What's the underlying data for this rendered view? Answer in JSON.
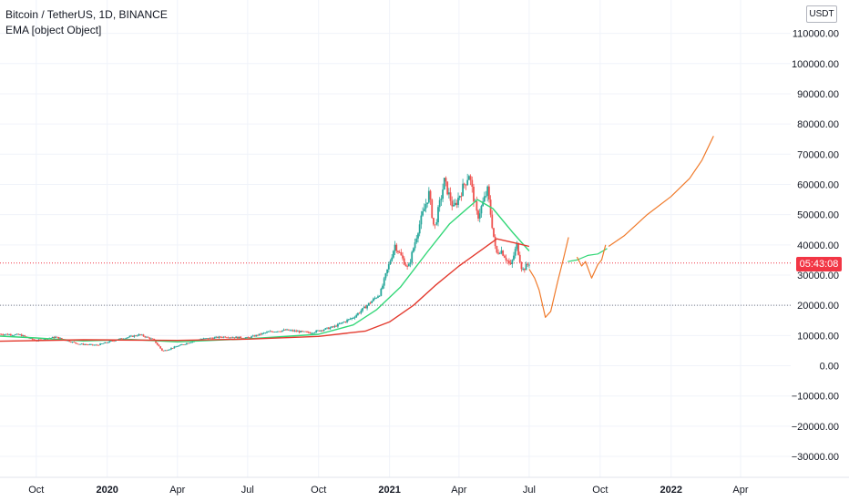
{
  "header": {
    "title": "Bitcoin / TetherUS, 1D, BINANCE",
    "indicator": "EMA  [object Object]"
  },
  "axis": {
    "currency_button": "USDT",
    "countdown": "05:43:08"
  },
  "colors": {
    "background": "#ffffff",
    "grid": "#f0f3fa",
    "candle_up": "#26a69a",
    "candle_down": "#ef5350",
    "ema_fast": "#33d778",
    "ema_slow": "#e33a2e",
    "projection": "#f07a2a",
    "price_line": "#f23645",
    "support_line": "#787b86"
  },
  "chart_data": {
    "type": "line",
    "title": "Bitcoin / TetherUS, 1D, BINANCE",
    "ylim": [
      -33000,
      115000
    ],
    "y_ticks": [
      110000,
      100000,
      90000,
      80000,
      70000,
      60000,
      50000,
      40000,
      30000,
      20000,
      10000,
      0,
      -10000,
      -20000,
      -30000
    ],
    "y_tick_labels": [
      "110000.00",
      "100000.00",
      "90000.00",
      "80000.00",
      "70000.00",
      "60000.00",
      "50000.00",
      "40000.00",
      "30000.00",
      "20000.00",
      "10000.00",
      "0.00",
      "−10000.00",
      "−20000.00",
      "−30000.00"
    ],
    "x_tick_labels": [
      {
        "label": "Oct",
        "date": "2019-10-01",
        "bold": false
      },
      {
        "label": "2020",
        "date": "2020-01-01",
        "bold": true
      },
      {
        "label": "Apr",
        "date": "2020-04-01",
        "bold": false
      },
      {
        "label": "Jul",
        "date": "2020-07-01",
        "bold": false
      },
      {
        "label": "Oct",
        "date": "2020-10-01",
        "bold": false
      },
      {
        "label": "2021",
        "date": "2021-01-01",
        "bold": true
      },
      {
        "label": "Apr",
        "date": "2021-04-01",
        "bold": false
      },
      {
        "label": "Jul",
        "date": "2021-07-01",
        "bold": false
      },
      {
        "label": "Oct",
        "date": "2021-10-01",
        "bold": false
      },
      {
        "label": "2022",
        "date": "2022-01-01",
        "bold": true
      },
      {
        "label": "Apr",
        "date": "2022-04-01",
        "bold": false
      }
    ],
    "last_price": 34000,
    "horizontal_lines": [
      {
        "name": "last-price-line",
        "y": 34000
      },
      {
        "name": "support-line",
        "y": 20000
      }
    ],
    "price_path": [
      [
        "2019-08-15",
        10500
      ],
      [
        "2019-09-10",
        10200
      ],
      [
        "2019-10-01",
        8300
      ],
      [
        "2019-10-26",
        9500
      ],
      [
        "2019-11-25",
        7200
      ],
      [
        "2019-12-18",
        6800
      ],
      [
        "2020-01-15",
        8700
      ],
      [
        "2020-02-12",
        10300
      ],
      [
        "2020-03-01",
        8600
      ],
      [
        "2020-03-13",
        4800
      ],
      [
        "2020-04-01",
        6500
      ],
      [
        "2020-04-30",
        8800
      ],
      [
        "2020-06-01",
        9600
      ],
      [
        "2020-07-01",
        9200
      ],
      [
        "2020-07-28",
        11200
      ],
      [
        "2020-08-20",
        11800
      ],
      [
        "2020-09-20",
        10900
      ],
      [
        "2020-10-21",
        12900
      ],
      [
        "2020-11-15",
        16000
      ],
      [
        "2020-11-30",
        19300
      ],
      [
        "2020-12-20",
        24000
      ],
      [
        "2021-01-08",
        40000
      ],
      [
        "2021-01-25",
        32000
      ],
      [
        "2021-02-08",
        46000
      ],
      [
        "2021-02-21",
        57000
      ],
      [
        "2021-02-28",
        45000
      ],
      [
        "2021-03-13",
        61000
      ],
      [
        "2021-03-25",
        52000
      ],
      [
        "2021-04-14",
        63500
      ],
      [
        "2021-04-25",
        49000
      ],
      [
        "2021-05-08",
        58000
      ],
      [
        "2021-05-19",
        37000
      ],
      [
        "2021-05-25",
        38500
      ],
      [
        "2021-06-07",
        33000
      ],
      [
        "2021-06-15",
        40000
      ],
      [
        "2021-06-22",
        31500
      ],
      [
        "2021-07-01",
        34000
      ]
    ],
    "series": [
      {
        "values": [
          [
            "2019-08-15",
            9800
          ],
          [
            "2019-10-01",
            9200
          ],
          [
            "2019-12-01",
            8200
          ],
          [
            "2020-02-01",
            8700
          ],
          [
            "2020-04-01",
            7900
          ],
          [
            "2020-07-01",
            8900
          ],
          [
            "2020-10-01",
            10400
          ],
          [
            "2020-11-15",
            13500
          ],
          [
            "2020-12-15",
            18500
          ],
          [
            "2021-01-15",
            26000
          ],
          [
            "2021-02-20",
            38000
          ],
          [
            "2021-03-20",
            47000
          ],
          [
            "2021-04-25",
            55000
          ],
          [
            "2021-05-15",
            52000
          ],
          [
            "2021-06-10",
            44000
          ],
          [
            "2021-07-01",
            38000
          ]
        ]
      },
      {
        "values": [
          [
            "2019-08-15",
            8100
          ],
          [
            "2019-12-01",
            8600
          ],
          [
            "2020-04-01",
            8400
          ],
          [
            "2020-07-01",
            8800
          ],
          [
            "2020-10-01",
            9700
          ],
          [
            "2020-12-01",
            11500
          ],
          [
            "2021-01-01",
            14500
          ],
          [
            "2021-02-01",
            20000
          ],
          [
            "2021-03-01",
            26500
          ],
          [
            "2021-04-01",
            33000
          ],
          [
            "2021-05-01",
            38500
          ],
          [
            "2021-05-20",
            42000
          ],
          [
            "2021-06-15",
            40500
          ],
          [
            "2021-07-01",
            39500
          ]
        ]
      },
      {
        "values": [
          [
            "2021-07-01",
            32000
          ],
          [
            "2021-07-08",
            29000
          ],
          [
            "2021-07-14",
            25000
          ],
          [
            "2021-07-22",
            16000
          ],
          [
            "2021-07-29",
            18000
          ],
          [
            "2021-08-07",
            28000
          ],
          [
            "2021-08-15",
            36000
          ],
          [
            "2021-08-21",
            42500
          ]
        ]
      },
      {
        "values": [
          [
            "2021-08-20",
            34500
          ],
          [
            "2021-09-01",
            35000
          ],
          [
            "2021-09-15",
            36500
          ],
          [
            "2021-09-28",
            37000
          ],
          [
            "2021-10-10",
            38800
          ]
        ]
      },
      {
        "values": [
          [
            "2021-09-01",
            36000
          ],
          [
            "2021-09-07",
            33000
          ],
          [
            "2021-09-12",
            34500
          ],
          [
            "2021-09-20",
            29000
          ],
          [
            "2021-09-28",
            33500
          ],
          [
            "2021-10-03",
            35000
          ],
          [
            "2021-10-08",
            40000
          ]
        ]
      },
      {
        "values": [
          [
            "2021-10-12",
            39500
          ],
          [
            "2021-11-01",
            43000
          ],
          [
            "2021-12-01",
            50000
          ],
          [
            "2022-01-01",
            56000
          ],
          [
            "2022-01-25",
            62000
          ],
          [
            "2022-02-10",
            68000
          ],
          [
            "2022-02-25",
            76000
          ]
        ]
      }
    ]
  }
}
